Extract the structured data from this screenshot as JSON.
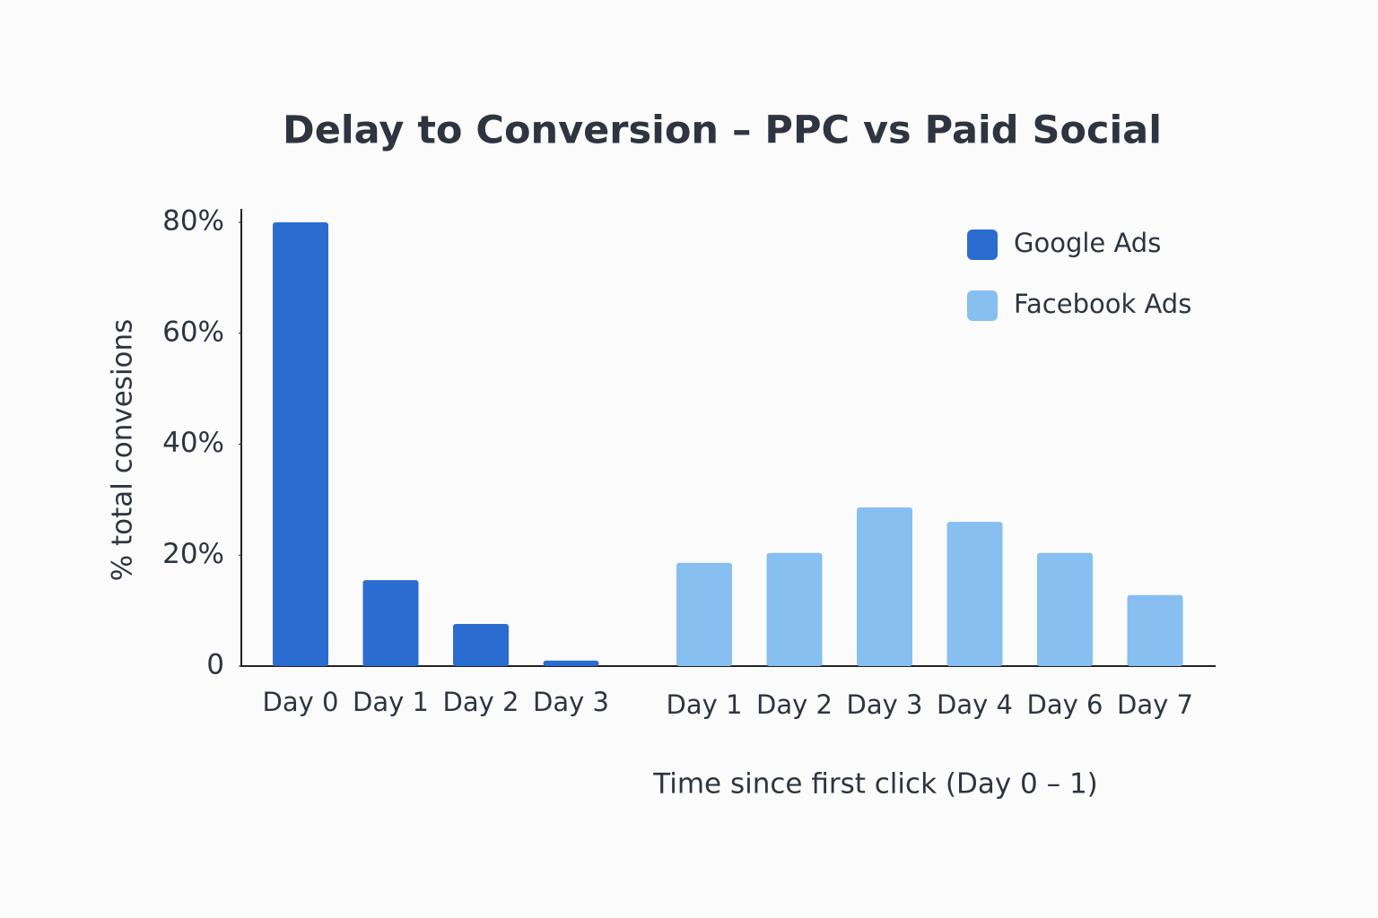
{
  "chart_data": {
    "type": "bar",
    "title": "Delay to Conversion – PPC vs Paid Social",
    "y_label": "% total convesions",
    "x_label": "Time since first click (Day 0 – 1)",
    "categories": [
      "Day 0",
      "Day 1",
      "Day 2",
      "Day 3",
      "Day 1",
      "Day 2",
      "Day 3",
      "Day 4",
      "Day 6",
      "Day 7"
    ],
    "series": [
      {
        "name": "Google Ads",
        "color": "#2b6cd0",
        "values": [
          80,
          15.5,
          7.6,
          1,
          null,
          null,
          null,
          null,
          null,
          null
        ]
      },
      {
        "name": "Facebook Ads",
        "color": "#86bff0",
        "values": [
          null,
          null,
          null,
          null,
          18.6,
          20.4,
          28.6,
          26,
          20.4,
          12.8
        ]
      }
    ],
    "ylim": [
      0,
      80
    ],
    "yticks": [
      0,
      {
        "value": 20,
        "label": "20%"
      },
      {
        "value": 40,
        "label": "40%"
      },
      {
        "value": 60,
        "label": "60%"
      },
      {
        "value": 80,
        "label": "80%"
      }
    ],
    "grid": false,
    "legend": "top-right"
  }
}
